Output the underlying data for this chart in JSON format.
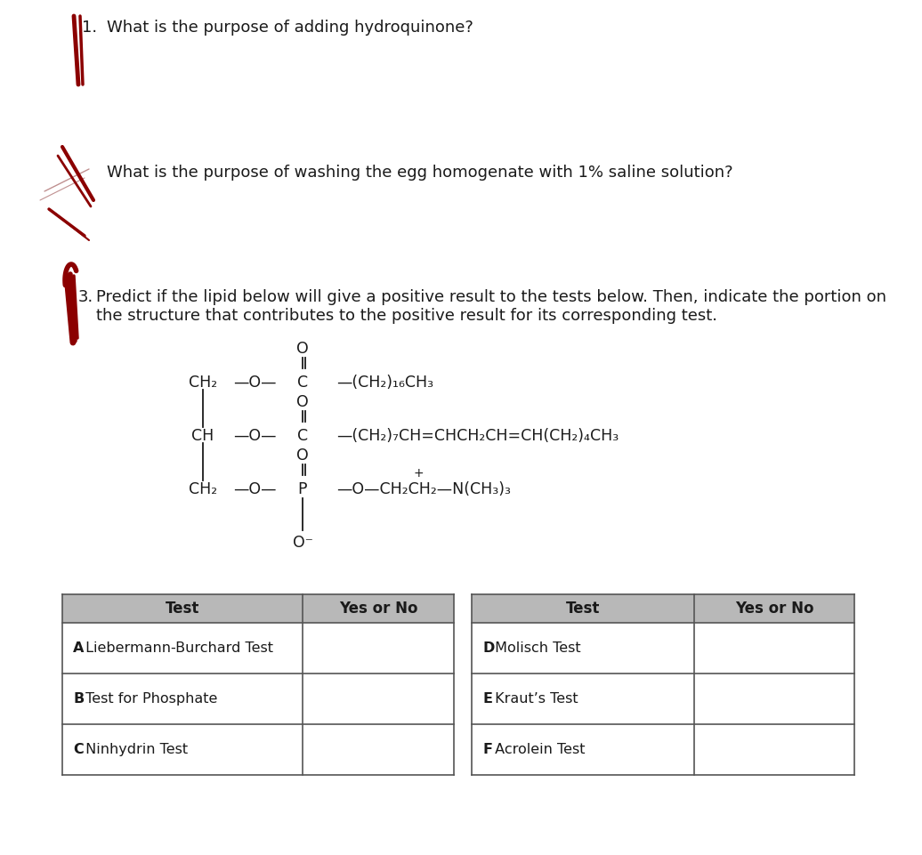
{
  "q1_text": "What is the purpose of adding hydroquinone?",
  "q2_text": "What is the purpose of washing the egg homogenate with 1% saline solution?",
  "q3_line1": "Predict if the lipid below will give a positive result to the tests below. Then, indicate the portion on",
  "q3_line2": "the structure that contributes to the positive result for its corresponding test.",
  "background_color": "#ffffff",
  "text_color": "#1a1a1a",
  "red_color": "#8B0000",
  "table_header_color": "#b8b8b8",
  "table_border_color": "#555555",
  "left_tests": [
    "A Liebermann-Burchard Test",
    "B Test for Phosphate",
    "C Ninhydrin Test"
  ],
  "right_tests": [
    "D Molisch Test",
    "E Kraut’s Test",
    "F Acrolein Test"
  ]
}
